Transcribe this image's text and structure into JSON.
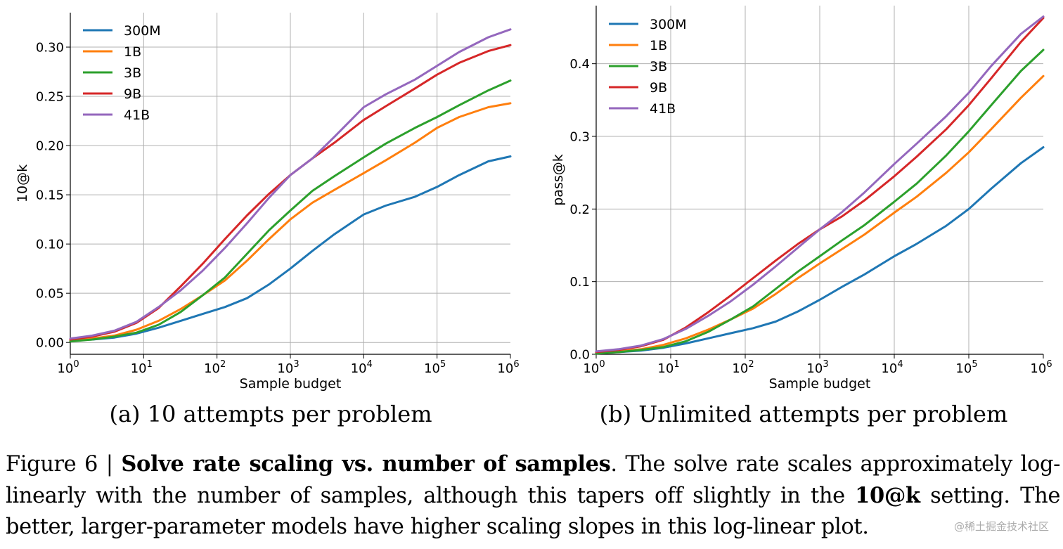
{
  "chart_data": [
    {
      "type": "line",
      "xscale": "log",
      "xlabel": "Sample budget",
      "ylabel": "10@k",
      "xlim": [
        1,
        1000000
      ],
      "ylim": [
        -0.012,
        0.335
      ],
      "x_tick_exponents": [
        "0",
        "1",
        "2",
        "3",
        "4",
        "5",
        "6"
      ],
      "y_ticks": [
        "0.00",
        "0.05",
        "0.10",
        "0.15",
        "0.20",
        "0.25",
        "0.30"
      ],
      "y_tick_values": [
        0,
        0.05,
        0.1,
        0.15,
        0.2,
        0.25,
        0.3
      ],
      "legend_position": "top-left",
      "caption": "(a) 10 attempts per problem",
      "series": [
        {
          "name": "300M",
          "color": "#1f77b4",
          "x": [
            1,
            2,
            4,
            8,
            16,
            32,
            64,
            128,
            256,
            512,
            1000,
            2000,
            4000,
            10000,
            20000,
            50000,
            100000,
            200000,
            500000,
            1000000
          ],
          "values": [
            0.002,
            0.003,
            0.005,
            0.009,
            0.015,
            0.022,
            0.029,
            0.036,
            0.045,
            0.059,
            0.075,
            0.093,
            0.11,
            0.13,
            0.139,
            0.148,
            0.158,
            0.17,
            0.184,
            0.189
          ]
        },
        {
          "name": "1B",
          "color": "#ff7f0e",
          "x": [
            1,
            2,
            4,
            8,
            16,
            32,
            64,
            128,
            256,
            512,
            1000,
            2000,
            4000,
            10000,
            20000,
            50000,
            100000,
            200000,
            500000,
            1000000
          ],
          "values": [
            0.002,
            0.004,
            0.007,
            0.013,
            0.022,
            0.034,
            0.048,
            0.063,
            0.083,
            0.105,
            0.125,
            0.142,
            0.155,
            0.172,
            0.185,
            0.203,
            0.218,
            0.229,
            0.239,
            0.243
          ]
        },
        {
          "name": "3B",
          "color": "#2ca02c",
          "x": [
            1,
            2,
            4,
            8,
            16,
            32,
            64,
            128,
            256,
            512,
            1000,
            2000,
            4000,
            10000,
            20000,
            50000,
            100000,
            200000,
            500000,
            1000000
          ],
          "values": [
            0.001,
            0.003,
            0.006,
            0.01,
            0.018,
            0.031,
            0.048,
            0.066,
            0.09,
            0.114,
            0.134,
            0.154,
            0.169,
            0.188,
            0.202,
            0.218,
            0.229,
            0.241,
            0.256,
            0.266
          ]
        },
        {
          "name": "9B",
          "color": "#d62728",
          "x": [
            1,
            2,
            4,
            8,
            16,
            32,
            64,
            128,
            256,
            512,
            1000,
            2000,
            4000,
            10000,
            20000,
            50000,
            100000,
            200000,
            500000,
            1000000
          ],
          "values": [
            0.003,
            0.006,
            0.011,
            0.02,
            0.035,
            0.057,
            0.08,
            0.105,
            0.129,
            0.151,
            0.17,
            0.187,
            0.203,
            0.226,
            0.24,
            0.258,
            0.272,
            0.284,
            0.296,
            0.302
          ]
        },
        {
          "name": "41B",
          "color": "#9467bd",
          "x": [
            1,
            2,
            4,
            8,
            16,
            32,
            64,
            128,
            256,
            512,
            1000,
            2000,
            4000,
            10000,
            20000,
            50000,
            100000,
            200000,
            500000,
            1000000
          ],
          "values": [
            0.004,
            0.007,
            0.012,
            0.021,
            0.036,
            0.053,
            0.073,
            0.096,
            0.121,
            0.147,
            0.17,
            0.187,
            0.209,
            0.239,
            0.252,
            0.267,
            0.281,
            0.295,
            0.31,
            0.318
          ]
        }
      ]
    },
    {
      "type": "line",
      "xscale": "log",
      "xlabel": "Sample budget",
      "ylabel": "pass@k",
      "xlim": [
        1,
        1000000
      ],
      "ylim": [
        0,
        0.48
      ],
      "x_tick_exponents": [
        "0",
        "1",
        "2",
        "3",
        "4",
        "5",
        "6"
      ],
      "y_ticks": [
        "0.0",
        "0.1",
        "0.2",
        "0.3",
        "0.4"
      ],
      "y_tick_values": [
        0,
        0.1,
        0.2,
        0.3,
        0.4
      ],
      "legend_position": "top-left",
      "caption": "(b) Unlimited attempts per problem",
      "series": [
        {
          "name": "300M",
          "color": "#1f77b4",
          "x": [
            1,
            2,
            4,
            8,
            16,
            32,
            64,
            128,
            256,
            512,
            1000,
            2000,
            4000,
            10000,
            20000,
            50000,
            100000,
            200000,
            500000,
            1000000
          ],
          "values": [
            0.002,
            0.003,
            0.005,
            0.009,
            0.015,
            0.022,
            0.029,
            0.036,
            0.045,
            0.059,
            0.075,
            0.093,
            0.11,
            0.135,
            0.152,
            0.177,
            0.2,
            0.228,
            0.263,
            0.285
          ]
        },
        {
          "name": "1B",
          "color": "#ff7f0e",
          "x": [
            1,
            2,
            4,
            8,
            16,
            32,
            64,
            128,
            256,
            512,
            1000,
            2000,
            4000,
            10000,
            20000,
            50000,
            100000,
            200000,
            500000,
            1000000
          ],
          "values": [
            0.002,
            0.004,
            0.007,
            0.013,
            0.022,
            0.034,
            0.048,
            0.063,
            0.083,
            0.105,
            0.125,
            0.145,
            0.165,
            0.195,
            0.217,
            0.25,
            0.278,
            0.31,
            0.353,
            0.383
          ]
        },
        {
          "name": "3B",
          "color": "#2ca02c",
          "x": [
            1,
            2,
            4,
            8,
            16,
            32,
            64,
            128,
            256,
            512,
            1000,
            2000,
            4000,
            10000,
            20000,
            50000,
            100000,
            200000,
            500000,
            1000000
          ],
          "values": [
            0.001,
            0.003,
            0.006,
            0.01,
            0.018,
            0.031,
            0.048,
            0.066,
            0.09,
            0.114,
            0.135,
            0.157,
            0.178,
            0.21,
            0.235,
            0.274,
            0.307,
            0.343,
            0.39,
            0.419
          ]
        },
        {
          "name": "9B",
          "color": "#d62728",
          "x": [
            1,
            2,
            4,
            8,
            16,
            32,
            64,
            128,
            256,
            512,
            1000,
            2000,
            4000,
            10000,
            20000,
            50000,
            100000,
            200000,
            500000,
            1000000
          ],
          "values": [
            0.003,
            0.006,
            0.011,
            0.02,
            0.037,
            0.058,
            0.081,
            0.105,
            0.129,
            0.152,
            0.172,
            0.19,
            0.212,
            0.245,
            0.272,
            0.31,
            0.343,
            0.38,
            0.43,
            0.463
          ]
        },
        {
          "name": "41B",
          "color": "#9467bd",
          "x": [
            1,
            2,
            4,
            8,
            16,
            32,
            64,
            128,
            256,
            512,
            1000,
            2000,
            4000,
            10000,
            20000,
            50000,
            100000,
            200000,
            500000,
            1000000
          ],
          "values": [
            0.004,
            0.007,
            0.012,
            0.021,
            0.035,
            0.053,
            0.073,
            0.096,
            0.121,
            0.147,
            0.172,
            0.196,
            0.223,
            0.262,
            0.29,
            0.328,
            0.36,
            0.397,
            0.441,
            0.465
          ]
        }
      ]
    }
  ],
  "figure_caption": {
    "prefix": "Figure 6 | ",
    "bold_title": "Solve rate scaling vs.  number of samples",
    "text_1": ". The solve rate scales approximately log-linearly with the number of samples, although this tapers off slightly in the ",
    "bold_term": "10@k",
    "text_2": " setting. The better, larger-parameter models have higher scaling slopes in this log-linear plot."
  },
  "watermark": "@稀土掘金技术社区"
}
